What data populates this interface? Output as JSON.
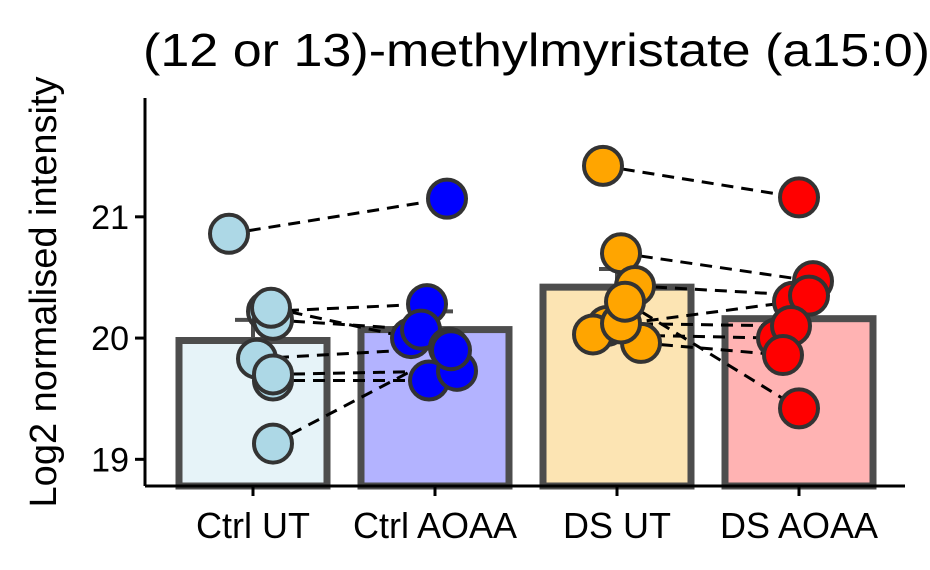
{
  "chart_data": {
    "type": "bar",
    "title": "(12 or 13)-methylmyristate (a15:0)",
    "ylabel": "Log2 normalised intensity",
    "xlabel": "",
    "categories": [
      "Ctrl UT",
      "Ctrl AOAA",
      "DS UT",
      "DS AOAA"
    ],
    "bar_values": [
      19.98,
      20.07,
      20.42,
      20.16
    ],
    "error_upper": [
      20.15,
      20.22,
      20.57,
      20.32
    ],
    "ylim": [
      18.78,
      21.98
    ],
    "yticks": [
      19,
      20,
      21
    ],
    "ytick_labels": [
      "19",
      "20",
      "21"
    ],
    "bar_fill_colors": [
      "#E6F3F8",
      "#B3B3FF",
      "#FCE4B3",
      "#FFB3B3"
    ],
    "point_colors": [
      "#ADD8E6",
      "#0000FF",
      "#FFA500",
      "#FF0000"
    ],
    "bar_edge_color": "#4D4D4D",
    "point_edge_color": "#333333",
    "points": [
      [
        20.86,
        20.22,
        20.15,
        20.25,
        19.83,
        19.65,
        19.7,
        19.13
      ],
      [
        21.15,
        20.28,
        20.0,
        20.07,
        19.65,
        19.92,
        19.73,
        19.9
      ],
      [
        21.42,
        20.7,
        20.1,
        20.43,
        20.03,
        19.96,
        20.12,
        20.3
      ],
      [
        21.16,
        20.47,
        20.3,
        20.35,
        20.0,
        20.1,
        19.86,
        19.42
      ]
    ],
    "pairs": [
      {
        "from": [
          0,
          0
        ],
        "to": [
          1,
          0
        ]
      },
      {
        "from": [
          0,
          1
        ],
        "to": [
          1,
          1
        ]
      },
      {
        "from": [
          0,
          2
        ],
        "to": [
          1,
          3
        ]
      },
      {
        "from": [
          0,
          3
        ],
        "to": [
          1,
          2
        ]
      },
      {
        "from": [
          0,
          4
        ],
        "to": [
          1,
          5
        ]
      },
      {
        "from": [
          0,
          5
        ],
        "to": [
          1,
          4
        ]
      },
      {
        "from": [
          0,
          6
        ],
        "to": [
          1,
          6
        ]
      },
      {
        "from": [
          0,
          7
        ],
        "to": [
          1,
          7
        ]
      },
      {
        "from": [
          2,
          0
        ],
        "to": [
          3,
          0
        ]
      },
      {
        "from": [
          2,
          1
        ],
        "to": [
          3,
          1
        ]
      },
      {
        "from": [
          2,
          2
        ],
        "to": [
          3,
          2
        ]
      },
      {
        "from": [
          2,
          3
        ],
        "to": [
          3,
          3
        ]
      },
      {
        "from": [
          2,
          4
        ],
        "to": [
          3,
          4
        ]
      },
      {
        "from": [
          2,
          5
        ],
        "to": [
          3,
          6
        ]
      },
      {
        "from": [
          2,
          6
        ],
        "to": [
          3,
          5
        ]
      },
      {
        "from": [
          2,
          7
        ],
        "to": [
          3,
          7
        ]
      }
    ],
    "grid": false,
    "legend": "none"
  }
}
